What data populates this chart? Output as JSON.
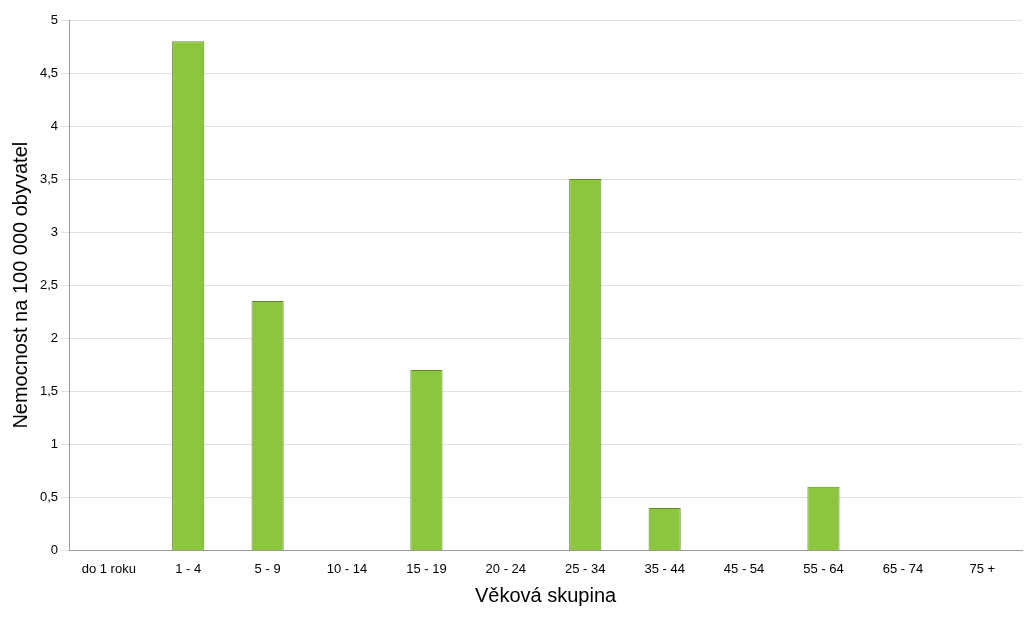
{
  "chart_data": {
    "type": "bar",
    "xlabel": "Věková skupina",
    "ylabel": "Nemocnost na 100 000 obyvatel",
    "categories": [
      "do 1 roku",
      "1 - 4",
      "5 - 9",
      "10 - 14",
      "15 - 19",
      "20 - 24",
      "25 - 34",
      "35 - 44",
      "45 - 54",
      "55 - 64",
      "65 - 74",
      "75 +"
    ],
    "values": [
      0,
      4.8,
      2.35,
      0,
      1.7,
      0,
      3.5,
      0.4,
      0,
      0.6,
      0,
      0
    ],
    "color": "#8cc63f",
    "ylim": [
      0,
      5
    ],
    "yticks": [
      0,
      {
        "value": 0.5,
        "label": "0,5"
      },
      1,
      {
        "value": 1.5,
        "label": "1,5"
      },
      2,
      {
        "value": 2.5,
        "label": "2,5"
      },
      3,
      {
        "value": 3.5,
        "label": "3,5"
      },
      4,
      {
        "value": 4.5,
        "label": "4,5"
      },
      5
    ],
    "grid": "y"
  }
}
